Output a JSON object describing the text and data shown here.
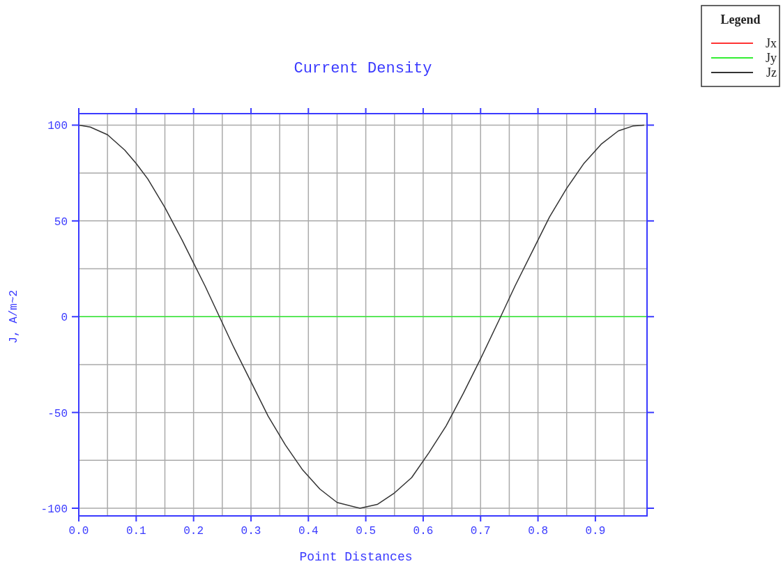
{
  "chart_data": {
    "type": "line",
    "title": "Current Density",
    "xlabel": "Point Distances",
    "ylabel": "J, A/m~2",
    "xlim": [
      0,
      0.99
    ],
    "ylim": [
      -104,
      106
    ],
    "xticks": [
      {
        "value": 0,
        "label": "0.0"
      },
      {
        "value": 0.05,
        "label": null
      },
      0.1,
      {
        "value": 0.15,
        "label": null
      },
      0.2,
      {
        "value": 0.25,
        "label": null
      },
      0.3,
      {
        "value": 0.35,
        "label": null
      },
      0.4,
      {
        "value": 0.45,
        "label": null
      },
      0.5,
      {
        "value": 0.55,
        "label": null
      },
      0.6,
      {
        "value": 0.65,
        "label": null
      },
      0.7,
      {
        "value": 0.75,
        "label": null
      },
      0.8,
      {
        "value": 0.85,
        "label": null
      },
      0.9,
      {
        "value": 0.95,
        "label": null
      }
    ],
    "yticks": [
      -100,
      {
        "value": -75,
        "label": null
      },
      -50,
      {
        "value": -25,
        "label": null
      },
      0,
      {
        "value": 25,
        "label": null
      },
      50,
      {
        "value": 75,
        "label": null
      },
      100
    ],
    "grid": true,
    "legend": "top right",
    "legend_title": "Legend",
    "line_style": "solid",
    "marker": "none",
    "series": [
      {
        "name": "Jx",
        "color": "#ff3333"
      },
      {
        "name": "Jy",
        "color": "#33ee33",
        "x": [
          0,
          0.99
        ],
        "values": [
          0,
          0
        ]
      },
      {
        "name": "Jz",
        "color": "#333333",
        "x": [
          0,
          0.02,
          0.05,
          0.08,
          0.1,
          0.12,
          0.15,
          0.18,
          0.2,
          0.22,
          0.245,
          0.27,
          0.3,
          0.33,
          0.36,
          0.39,
          0.42,
          0.45,
          0.49,
          0.52,
          0.55,
          0.58,
          0.61,
          0.64,
          0.67,
          0.7,
          0.735,
          0.76,
          0.79,
          0.82,
          0.85,
          0.88,
          0.91,
          0.94,
          0.965,
          0.985
        ],
        "values": [
          100,
          99,
          95,
          87,
          80,
          72,
          57,
          40,
          28,
          16,
          0,
          -16,
          -34,
          -52,
          -67,
          -80,
          -90,
          -97,
          -100,
          -98,
          -92,
          -84,
          -71,
          -57,
          -40,
          -22,
          0,
          16,
          34,
          52,
          67,
          80,
          90,
          97,
          99.5,
          100
        ]
      }
    ]
  }
}
